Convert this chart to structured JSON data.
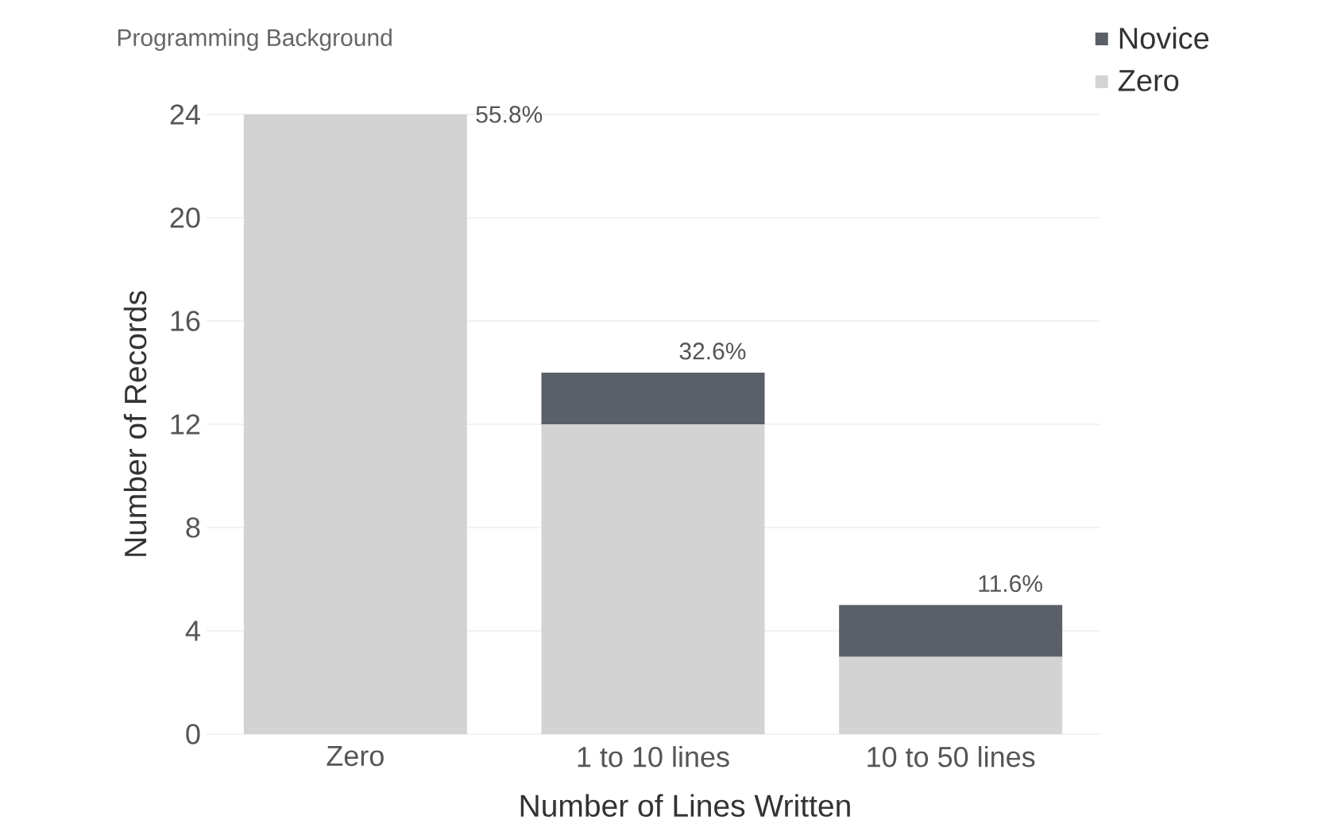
{
  "chart_data": {
    "type": "bar",
    "title": "Programming Background",
    "xlabel": "Number of Lines Written",
    "ylabel": "Number of Records",
    "categories": [
      "Zero",
      "1 to 10 lines",
      "10 to 50 lines"
    ],
    "series": [
      {
        "name": "Zero",
        "color": "#d3d3d3",
        "values": [
          24,
          12,
          3
        ]
      },
      {
        "name": "Novice",
        "color": "#5b5f67",
        "values": [
          null,
          2,
          2
        ]
      }
    ],
    "stacked": true,
    "annotations": [
      "55.8%",
      "32.6%",
      "11.6%"
    ],
    "ylim": [
      0,
      24
    ],
    "yticks": [
      0,
      4,
      8,
      12,
      16,
      20,
      24
    ],
    "grid": "y",
    "legend": "top right"
  }
}
